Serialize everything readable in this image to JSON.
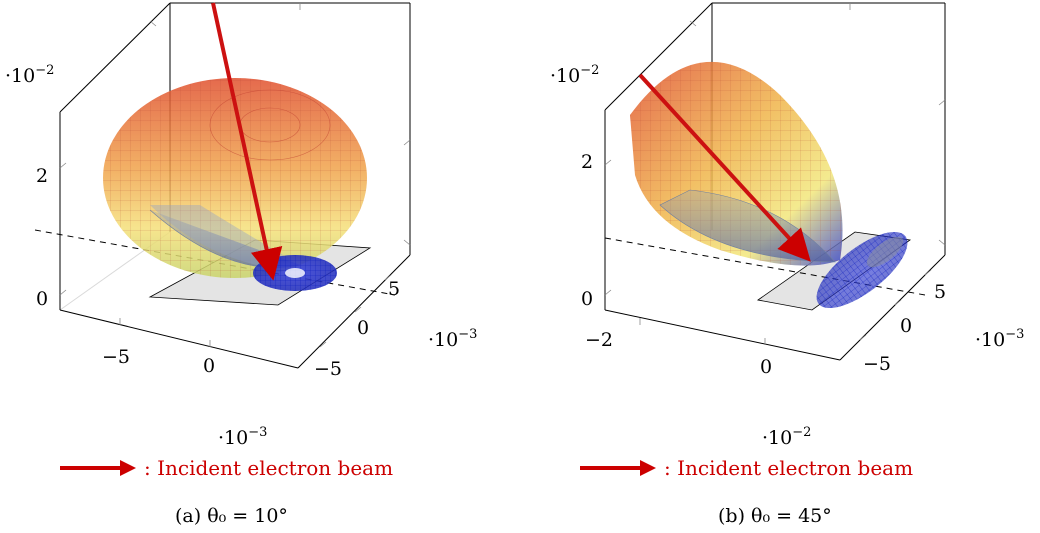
{
  "chart_data": [
    {
      "type": "3d-surface",
      "panel": "a",
      "caption": "(a) θ₀ = 10°",
      "z_axis": {
        "multiplier_base": "·10",
        "multiplier_exp": "−2",
        "ticks": [
          "0",
          "2"
        ],
        "values": [
          0,
          2
        ]
      },
      "x_axis": {
        "multiplier_base": "·10",
        "multiplier_exp": "−3",
        "ticks": [
          "−5",
          "0"
        ],
        "values": [
          -5,
          0
        ]
      },
      "y_axis": {
        "multiplier_base": "·10",
        "multiplier_exp": "−3",
        "ticks": [
          "5",
          "0",
          "−5"
        ],
        "values": [
          5,
          0,
          -5
        ]
      },
      "incident_angle_deg": 10,
      "legend": {
        "label": ": Incident electron beam",
        "color": "#cc0000"
      }
    },
    {
      "type": "3d-surface",
      "panel": "b",
      "caption": "(b) θ₀ = 45°",
      "z_axis": {
        "multiplier_base": "·10",
        "multiplier_exp": "−2",
        "ticks": [
          "0",
          "2"
        ],
        "values": [
          0,
          2
        ]
      },
      "x_axis": {
        "multiplier_base": "·10",
        "multiplier_exp": "−2",
        "ticks": [
          "−2",
          "0"
        ],
        "values": [
          -2,
          0
        ]
      },
      "y_axis": {
        "multiplier_base": "·10",
        "multiplier_exp": "−3",
        "ticks": [
          "5",
          "0",
          "−5"
        ],
        "values": [
          5,
          0,
          -5
        ]
      },
      "incident_angle_deg": 45,
      "legend": {
        "label": ": Incident electron beam",
        "color": "#cc0000"
      }
    }
  ],
  "colors": {
    "beam": "#cc0000",
    "surface_top": "#e04a2a",
    "surface_mid": "#f5d35a",
    "surface_bottom": "#2233cc",
    "plane": "#e3e3e3"
  }
}
